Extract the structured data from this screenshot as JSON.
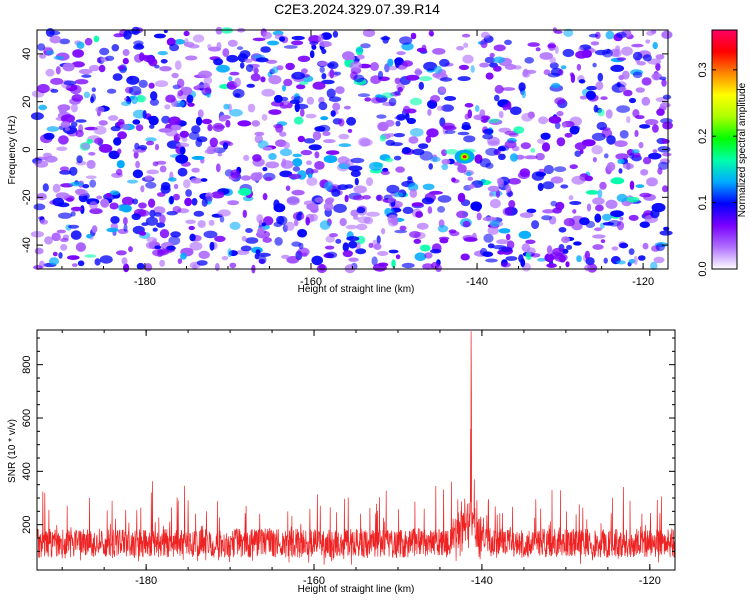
{
  "title": "C2E3.2024.329.07.39.R14",
  "chart_data": [
    {
      "type": "heatmap",
      "xlabel": "Height of straight line (km)",
      "ylabel": "Frequency (Hz)",
      "xlim": [
        -193,
        -117
      ],
      "ylim": [
        -50,
        50
      ],
      "xticks": [
        -180,
        -160,
        -140,
        -120
      ],
      "yticks": [
        -40,
        -20,
        0,
        20,
        40
      ],
      "grid": false,
      "peak": {
        "x": -141.5,
        "y": -3,
        "value": 0.33
      },
      "colorbar": {
        "label": "Normalized spectral amplitude",
        "range": [
          0,
          0.36
        ],
        "ticks": [
          0.0,
          0.1,
          0.2,
          0.3
        ],
        "colors": [
          "#ffffff",
          "#b070ff",
          "#7a00ff",
          "#0000ff",
          "#00aaff",
          "#00ffaa",
          "#00ff00",
          "#aaff00",
          "#ffff00",
          "#ff8800",
          "#ff0000",
          "#ff0066"
        ]
      }
    },
    {
      "type": "line",
      "xlabel": "Height of straight line (km)",
      "ylabel": "SNR (10 * v/v)",
      "xlim": [
        -193,
        -117
      ],
      "ylim": [
        30,
        930
      ],
      "xticks": [
        -180,
        -160,
        -140,
        -120
      ],
      "yticks": [
        200,
        400,
        600,
        800
      ],
      "grid": false,
      "color": "#ee2222",
      "baseline": 130,
      "noise_max": 320,
      "peak": {
        "x": -141.3,
        "y": 925
      }
    }
  ]
}
